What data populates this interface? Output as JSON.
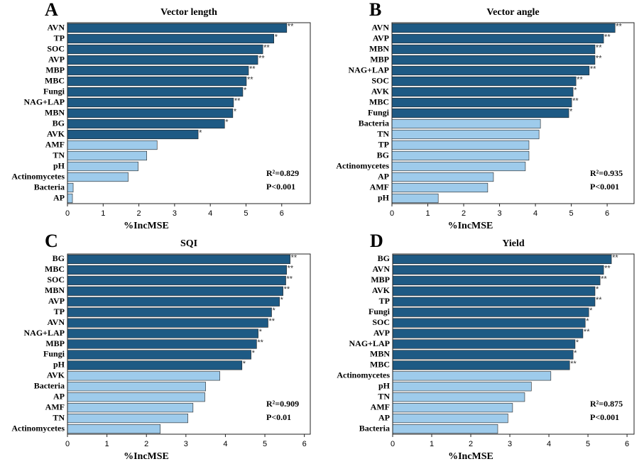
{
  "chart_data": [
    {
      "type": "hbar",
      "label": "A",
      "title": "Vector length",
      "xlabel": "%IncMSE",
      "categories": [
        "AVN",
        "TP",
        "SOC",
        "AVP",
        "MBP",
        "MBC",
        "Fungi",
        "NAG+LAP",
        "MBN",
        "BG",
        "AVK",
        "AMF",
        "TN",
        "pH",
        "Actinomycetes",
        "Bacteria",
        "AP"
      ],
      "values": [
        6.14,
        5.78,
        5.47,
        5.33,
        5.07,
        5.01,
        4.91,
        4.65,
        4.63,
        4.4,
        3.66,
        2.51,
        2.22,
        1.98,
        1.7,
        0.16,
        0.14
      ],
      "significance": [
        "**",
        "*",
        "**",
        "**",
        "**",
        "**",
        "*",
        "**",
        "*",
        "*",
        "*",
        null,
        null,
        null,
        null,
        null,
        null
      ],
      "colors": [
        "#1e5a84",
        "#1e5a84",
        "#1e5a84",
        "#1e5a84",
        "#1e5a84",
        "#1e5a84",
        "#1e5a84",
        "#1e5a84",
        "#1e5a84",
        "#1e5a84",
        "#1e5a84",
        "#9ecbeb",
        "#9ecbeb",
        "#9ecbeb",
        "#9ecbeb",
        "#9ecbeb",
        "#9ecbeb"
      ],
      "xlim": [
        0,
        6.8
      ],
      "xticks": [
        0,
        1,
        2,
        3,
        4,
        5,
        6
      ],
      "annotations": [
        "R²=0.829",
        "P<0.001"
      ]
    },
    {
      "type": "hbar",
      "label": "B",
      "title": "Vector angle",
      "xlabel": "%IncMSE",
      "categories": [
        "AVN",
        "AVP",
        "MBN",
        "MBP",
        "NAG+LAP",
        "SOC",
        "AVK",
        "MBC",
        "Fungi",
        "Bacteria",
        "TN",
        "TP",
        "BG",
        "Actinomycetes",
        "AP",
        "AMF",
        "pH"
      ],
      "values": [
        6.22,
        5.9,
        5.66,
        5.66,
        5.5,
        5.13,
        5.05,
        5.01,
        4.93,
        4.14,
        4.1,
        3.82,
        3.82,
        3.72,
        2.83,
        2.67,
        1.29
      ],
      "significance": [
        "**",
        "**",
        "**",
        "**",
        "**",
        "**",
        "*",
        "**",
        "*",
        null,
        null,
        null,
        null,
        null,
        null,
        null,
        null
      ],
      "colors": [
        "#1e5a84",
        "#1e5a84",
        "#1e5a84",
        "#1e5a84",
        "#1e5a84",
        "#1e5a84",
        "#1e5a84",
        "#1e5a84",
        "#1e5a84",
        "#9ecbeb",
        "#9ecbeb",
        "#9ecbeb",
        "#9ecbeb",
        "#9ecbeb",
        "#9ecbeb",
        "#9ecbeb",
        "#9ecbeb"
      ],
      "xlim": [
        0,
        6.75
      ],
      "xticks": [
        0,
        1,
        2,
        3,
        4,
        5,
        6
      ],
      "annotations": [
        "R²=0.935",
        "P<0.001"
      ]
    },
    {
      "type": "hbar",
      "label": "C",
      "title": "SQI",
      "xlabel": "%IncMSE",
      "categories": [
        "BG",
        "MBC",
        "SOC",
        "MBN",
        "AVP",
        "TP",
        "AVN",
        "NAG+LAP",
        "MBP",
        "Fungi",
        "pH",
        "AVK",
        "Bacteria",
        "AP",
        "AMF",
        "TN",
        "Actinomycetes"
      ],
      "values": [
        5.64,
        5.55,
        5.53,
        5.46,
        5.37,
        5.17,
        5.08,
        4.83,
        4.79,
        4.65,
        4.42,
        3.86,
        3.5,
        3.48,
        3.18,
        3.05,
        2.35
      ],
      "significance": [
        "**",
        "**",
        "**",
        "**",
        "*",
        "*",
        "**",
        "*",
        "**",
        "*",
        "*",
        null,
        null,
        null,
        null,
        null,
        null
      ],
      "colors": [
        "#1e5a84",
        "#1e5a84",
        "#1e5a84",
        "#1e5a84",
        "#1e5a84",
        "#1e5a84",
        "#1e5a84",
        "#1e5a84",
        "#1e5a84",
        "#1e5a84",
        "#1e5a84",
        "#9ecbeb",
        "#9ecbeb",
        "#9ecbeb",
        "#9ecbeb",
        "#9ecbeb",
        "#9ecbeb"
      ],
      "xlim": [
        0,
        6.15
      ],
      "xticks": [
        0,
        1,
        2,
        3,
        4,
        5,
        6
      ],
      "annotations": [
        "R²=0.909",
        "P<0.01"
      ]
    },
    {
      "type": "hbar",
      "label": "D",
      "title": "Yield",
      "xlabel": "%IncMSE",
      "categories": [
        "BG",
        "AVN",
        "MBP",
        "AVK",
        "TP",
        "Fungi",
        "SOC",
        "AVP",
        "NAG+LAP",
        "MBN",
        "MBC",
        "Actinomycetes",
        "pH",
        "TN",
        "AMF",
        "AP",
        "Bacteria"
      ],
      "values": [
        5.6,
        5.4,
        5.31,
        5.18,
        5.18,
        5.02,
        4.93,
        4.87,
        4.67,
        4.62,
        4.53,
        4.05,
        3.55,
        3.38,
        3.07,
        2.95,
        2.69
      ],
      "significance": [
        "**",
        "**",
        "**",
        "*",
        "**",
        "*",
        "*",
        "**",
        "*",
        "*",
        "**",
        null,
        null,
        null,
        null,
        null,
        null
      ],
      "colors": [
        "#1e5a84",
        "#1e5a84",
        "#1e5a84",
        "#1e5a84",
        "#1e5a84",
        "#1e5a84",
        "#1e5a84",
        "#1e5a84",
        "#1e5a84",
        "#1e5a84",
        "#1e5a84",
        "#9ecbeb",
        "#9ecbeb",
        "#9ecbeb",
        "#9ecbeb",
        "#9ecbeb",
        "#9ecbeb"
      ],
      "xlim": [
        0,
        6.18
      ],
      "xticks": [
        0,
        1,
        2,
        3,
        4,
        5,
        6
      ],
      "annotations": [
        "R²=0.875",
        "P<0.001"
      ]
    }
  ]
}
